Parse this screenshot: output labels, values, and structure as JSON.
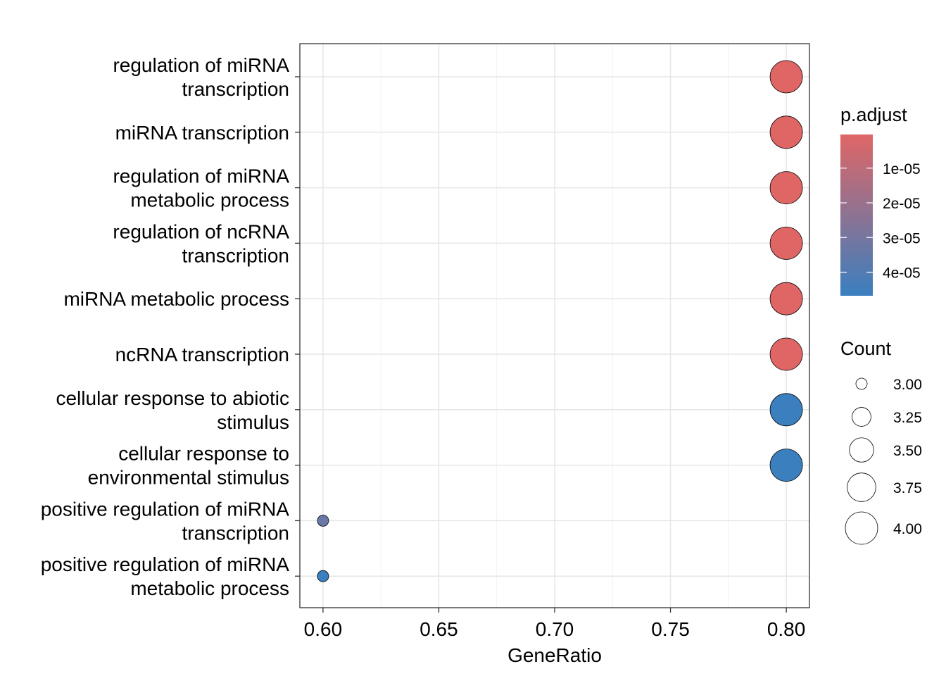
{
  "chart_data": {
    "type": "scatter",
    "xlabel": "GeneRatio",
    "xlim": [
      0.59,
      0.81
    ],
    "x_ticks": [
      "0.60",
      "0.65",
      "0.70",
      "0.75",
      "0.80"
    ],
    "grid": true,
    "categories": [
      "regulation of miRNA\ntranscription",
      "miRNA transcription",
      "regulation of miRNA\nmetabolic process",
      "regulation of ncRNA\ntranscription",
      "miRNA metabolic process",
      "ncRNA transcription",
      "cellular response to abiotic\nstimulus",
      "cellular response to\nenvironmental stimulus",
      "positive regulation of miRNA\ntranscription",
      "positive regulation of miRNA\nmetabolic process"
    ],
    "points": [
      {
        "term": "regulation of miRNA transcription",
        "gene_ratio": 0.8,
        "count": 4,
        "p_adjust": 3e-07
      },
      {
        "term": "miRNA transcription",
        "gene_ratio": 0.8,
        "count": 4,
        "p_adjust": 3e-07
      },
      {
        "term": "regulation of miRNA metabolic process",
        "gene_ratio": 0.8,
        "count": 4,
        "p_adjust": 3e-07
      },
      {
        "term": "regulation of ncRNA transcription",
        "gene_ratio": 0.8,
        "count": 4,
        "p_adjust": 3e-07
      },
      {
        "term": "miRNA metabolic process",
        "gene_ratio": 0.8,
        "count": 4,
        "p_adjust": 3e-07
      },
      {
        "term": "ncRNA transcription",
        "gene_ratio": 0.8,
        "count": 4,
        "p_adjust": 3e-07
      },
      {
        "term": "cellular response to abiotic stimulus",
        "gene_ratio": 0.8,
        "count": 4,
        "p_adjust": 4.65e-05
      },
      {
        "term": "cellular response to environmental stimulus",
        "gene_ratio": 0.8,
        "count": 4,
        "p_adjust": 4.65e-05
      },
      {
        "term": "positive regulation of miRNA transcription",
        "gene_ratio": 0.6,
        "count": 3,
        "p_adjust": 3.35e-05
      },
      {
        "term": "positive regulation of miRNA metabolic process",
        "gene_ratio": 0.6,
        "count": 3,
        "p_adjust": 4.65e-05
      }
    ],
    "color_legend": {
      "title": "p.adjust",
      "low_color": "#e06666",
      "high_color": "#3a7fbf",
      "range": [
        3e-07,
        4.68e-05
      ],
      "ticks": [
        1e-05,
        2e-05,
        3e-05,
        4e-05
      ],
      "tick_labels": [
        "1e-05",
        "2e-05",
        "3e-05",
        "4e-05"
      ]
    },
    "size_legend": {
      "title": "Count",
      "values": [
        3.0,
        3.25,
        3.5,
        3.75,
        4.0
      ],
      "labels": [
        "3.00",
        "3.25",
        "3.50",
        "3.75",
        "4.00"
      ]
    }
  }
}
